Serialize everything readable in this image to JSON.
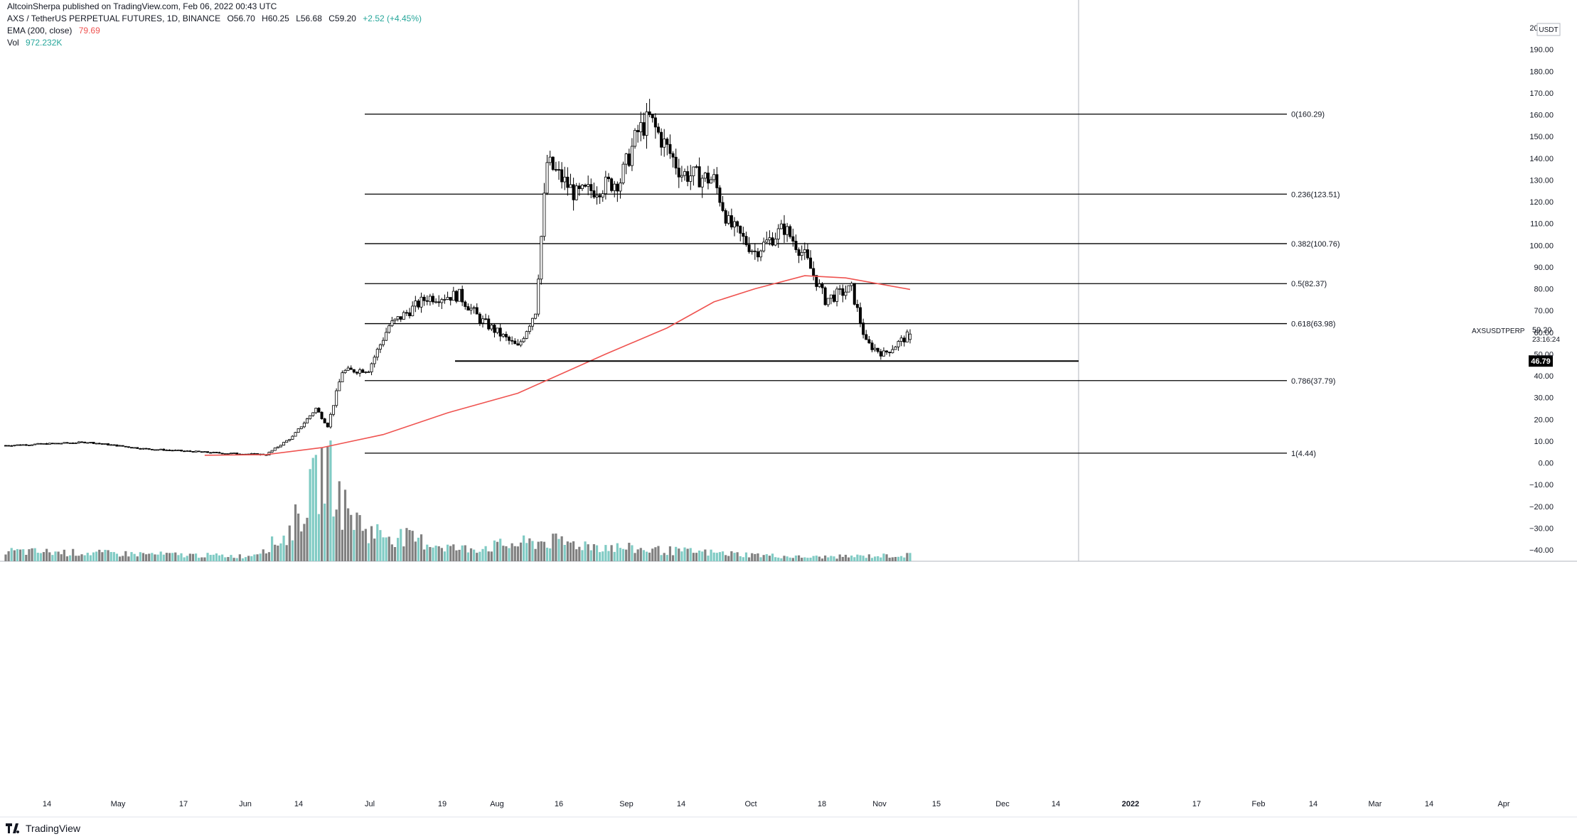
{
  "header": {
    "published": "AltcoinSherpa published on TradingView.com, Feb 06, 2022 00:43 UTC",
    "symbol": "AXS / TetherUS PERPETUAL FUTURES, 1D, BINANCE",
    "open": "O56.70",
    "high": "H60.25",
    "low": "L56.68",
    "close": "C59.20",
    "change": "+2.52 (+4.45%)",
    "ema_label": "EMA (200, close)",
    "ema_value": "79.69",
    "vol_label": "Vol",
    "vol_value": "972.232K"
  },
  "brand": {
    "name": "TradingView"
  },
  "colors": {
    "ema": "#ef5350",
    "up_volume": "#80cbc4",
    "down_volume": "#808080",
    "candle_up_fill": "#ffffff",
    "candle_down_fill": "#000000",
    "fib_line": "#000000"
  },
  "chart_data": {
    "type": "candlestick",
    "symbol_tag": "AXSUSDTPERP",
    "currency_tag": "USDT",
    "last_price": "59.20",
    "countdown": "23:16:24",
    "support_label": "46.79",
    "support_value": 46.79,
    "y_axis_range": [
      -40,
      200
    ],
    "y_axis_ticks": [
      "200.00",
      "190.00",
      "180.00",
      "170.00",
      "160.00",
      "150.00",
      "140.00",
      "130.00",
      "120.00",
      "110.00",
      "100.00",
      "90.00",
      "80.00",
      "70.00",
      "60.00",
      "50.00",
      "40.00",
      "30.00",
      "20.00",
      "10.00",
      "0.00",
      "−10.00",
      "−20.00",
      "−30.00",
      "−40.00"
    ],
    "x_axis_labels": [
      "14",
      "May",
      "17",
      "Jun",
      "14",
      "Jul",
      "19",
      "Aug",
      "16",
      "Sep",
      "14",
      "Oct",
      "18",
      "Nov",
      "15",
      "Dec",
      "14",
      "2022",
      "17",
      "Feb",
      "14",
      "Mar",
      "14",
      "Apr"
    ],
    "fib_levels": [
      {
        "label": "0(160.29)",
        "value": 160.29
      },
      {
        "label": "0.236(123.51)",
        "value": 123.51
      },
      {
        "label": "0.382(100.76)",
        "value": 100.76
      },
      {
        "label": "0.5(82.37)",
        "value": 82.37
      },
      {
        "label": "0.618(63.98)",
        "value": 63.98
      },
      {
        "label": "0.786(37.79)",
        "value": 37.79
      },
      {
        "label": "1(4.44)",
        "value": 4.44
      }
    ],
    "price_anchors": [
      {
        "date": "2021-04-03",
        "price": 8.0
      },
      {
        "date": "2021-05-01",
        "price": 9.5
      },
      {
        "date": "2021-05-20",
        "price": 6.5
      },
      {
        "date": "2021-06-15",
        "price": 4.5
      },
      {
        "date": "2021-07-01",
        "price": 3.8
      },
      {
        "date": "2021-07-10",
        "price": 12
      },
      {
        "date": "2021-07-18",
        "price": 25
      },
      {
        "date": "2021-07-22",
        "price": 17
      },
      {
        "date": "2021-07-27",
        "price": 42
      },
      {
        "date": "2021-08-05",
        "price": 43
      },
      {
        "date": "2021-08-12",
        "price": 63
      },
      {
        "date": "2021-08-25",
        "price": 76
      },
      {
        "date": "2021-09-05",
        "price": 77
      },
      {
        "date": "2021-09-12",
        "price": 66
      },
      {
        "date": "2021-09-25",
        "price": 53
      },
      {
        "date": "2021-10-01",
        "price": 70
      },
      {
        "date": "2021-10-05",
        "price": 138
      },
      {
        "date": "2021-10-15",
        "price": 123
      },
      {
        "date": "2021-10-30",
        "price": 130
      },
      {
        "date": "2021-11-05",
        "price": 152
      },
      {
        "date": "2021-11-09",
        "price": 158
      },
      {
        "date": "2021-11-20",
        "price": 133
      },
      {
        "date": "2021-12-01",
        "price": 130
      },
      {
        "date": "2021-12-06",
        "price": 110
      },
      {
        "date": "2021-12-15",
        "price": 97
      },
      {
        "date": "2021-12-25",
        "price": 108
      },
      {
        "date": "2022-01-01",
        "price": 95
      },
      {
        "date": "2022-01-08",
        "price": 75
      },
      {
        "date": "2022-01-17",
        "price": 80
      },
      {
        "date": "2022-01-22",
        "price": 55
      },
      {
        "date": "2022-01-28",
        "price": 50
      },
      {
        "date": "2022-02-06",
        "price": 59.2
      }
    ],
    "ema_points": [
      {
        "date": "2021-06-10",
        "value": 3.5
      },
      {
        "date": "2021-07-01",
        "value": 3.8
      },
      {
        "date": "2021-07-20",
        "value": 7
      },
      {
        "date": "2021-08-10",
        "value": 13
      },
      {
        "date": "2021-09-01",
        "value": 23
      },
      {
        "date": "2021-09-25",
        "value": 32
      },
      {
        "date": "2021-10-05",
        "value": 38
      },
      {
        "date": "2021-10-25",
        "value": 50
      },
      {
        "date": "2021-11-15",
        "value": 62
      },
      {
        "date": "2021-12-01",
        "value": 74
      },
      {
        "date": "2021-12-15",
        "value": 80
      },
      {
        "date": "2022-01-01",
        "value": 86
      },
      {
        "date": "2022-01-15",
        "value": 85
      },
      {
        "date": "2022-02-06",
        "value": 79.69
      }
    ],
    "volume_anchors": [
      {
        "date": "2021-04-03",
        "rel": 0.1
      },
      {
        "date": "2021-06-25",
        "rel": 0.05
      },
      {
        "date": "2021-07-08",
        "rel": 0.25
      },
      {
        "date": "2021-07-14",
        "rel": 0.55
      },
      {
        "date": "2021-07-22",
        "rel": 1.0
      },
      {
        "date": "2021-07-27",
        "rel": 0.55
      },
      {
        "date": "2021-08-05",
        "rel": 0.3
      },
      {
        "date": "2021-08-15",
        "rel": 0.25
      },
      {
        "date": "2021-09-05",
        "rel": 0.12
      },
      {
        "date": "2021-10-05",
        "rel": 0.2
      },
      {
        "date": "2021-11-05",
        "rel": 0.12
      },
      {
        "date": "2022-01-01",
        "rel": 0.04
      },
      {
        "date": "2022-02-06",
        "rel": 0.06
      }
    ]
  }
}
